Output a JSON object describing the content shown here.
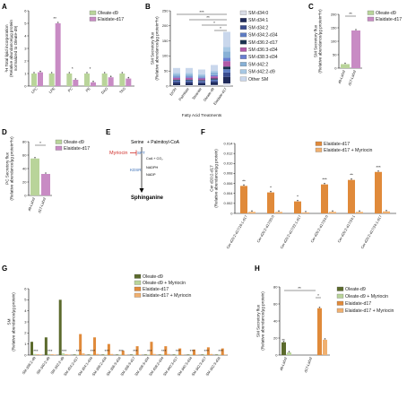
{
  "colors": {
    "oleate_d9": "#b9d49a",
    "elaidate_d17": "#c88bc4",
    "myriocin_green": "#7aa85a",
    "ela_orange": "#e08a3a",
    "ela_myr_orange": "#f0b070",
    "olive_dark": "#5b6a2c"
  },
  "panels": {
    "A": {
      "letter": "A",
      "ylabel": "³H Total lipid incorporation\n(Relative abundance/µg protein\nnormalized to Oleate-d9)",
      "legend": [
        "Oleate-d9",
        "Elaidate-d17"
      ]
    },
    "B": {
      "letter": "B",
      "ylabel": "SM Secretory flux\n(Relative abundance/µg protein*hr)",
      "xlabel": "Fatty Acid Treatments",
      "legend": [
        "SM d34:0",
        "SM d34:1",
        "SM d34:2",
        "SM d34:2-d34",
        "SM d36:2-d17",
        "SM d36:3-d34",
        "SM d38:3-d34",
        "SM d42:2",
        "SM d42:2-d9",
        "Other SM"
      ]
    },
    "C": {
      "letter": "C",
      "ylabel": "SM Secretory flux\n(Relative abundance/µg protein*hr)",
      "legend": [
        "Oleate-d9",
        "Elaidate-d17"
      ]
    },
    "D": {
      "letter": "D",
      "ylabel": "PC Secretory flux\n(Relative abundance/µg protein*hr)",
      "legend": [
        "Oleate-d9",
        "Elaidate-d17"
      ]
    },
    "E": {
      "letter": "E",
      "serine": "Serine",
      "palm": "+ Palmitoyl-CoA",
      "myriocin": "Myriocin",
      "spt": "SPT",
      "kdsr": "KDSR",
      "coa": "CoA + CO₂",
      "nadph": "NADPH",
      "nadp": "NADP",
      "product": "Sphinganine"
    },
    "F": {
      "letter": "F",
      "ylabel": "Cer d20:2-d17\n(Relative abundance/µg protein)",
      "legend": [
        "Elaidate-d17",
        "Elaidate-d17 + Myriocin"
      ]
    },
    "G": {
      "letter": "G",
      "ylabel": "SM\n(Relative abundance/µg protein)",
      "legend": [
        "Oleate-d9",
        "Oleate-d9 + Myriocin",
        "Elaidate-d17",
        "Elaidate-d17 + Myriocin"
      ]
    },
    "H": {
      "letter": "H",
      "ylabel": "SM Secretory flux\n(Relative abundance/µg protein)",
      "legend": [
        "Oleate-d9",
        "Oleate-d9 + Myriocin",
        "Elaidate-d17",
        "Elaidate-d17 + Myriocin"
      ]
    }
  },
  "chart_data": [
    {
      "panel": "A",
      "type": "bar",
      "categories": [
        "LPC",
        "LPE",
        "PC",
        "PE",
        "DAG",
        "TAG"
      ],
      "ylim": [
        0,
        6
      ],
      "yticks": [
        0,
        1,
        2,
        3,
        4,
        5,
        6
      ],
      "series": [
        {
          "name": "Oleate-d9",
          "values": [
            1.0,
            1.0,
            1.0,
            1.0,
            1.0,
            1.0
          ]
        },
        {
          "name": "Elaidate-d17",
          "values": [
            1.1,
            5.0,
            0.5,
            0.3,
            0.7,
            0.6
          ]
        }
      ],
      "significance": [
        "",
        "**",
        "*",
        "*",
        "",
        ""
      ]
    },
    {
      "panel": "B",
      "type": "bar",
      "categories": [
        "EtOH",
        "Palmitate",
        "Stearate",
        "Oleate-d9",
        "Elaidate-d17"
      ],
      "ylim": [
        0,
        250
      ],
      "yticks": [
        0,
        50,
        100,
        150,
        200,
        250
      ],
      "totals": [
        60,
        60,
        55,
        70,
        180
      ],
      "significance": [
        "***",
        "**",
        "*",
        "*"
      ]
    },
    {
      "panel": "C",
      "type": "bar",
      "categories": [
        "d9-Label",
        "d17-Label"
      ],
      "ylim": [
        0,
        200
      ],
      "yticks": [
        0,
        50,
        100,
        150,
        200
      ],
      "values": [
        15,
        140
      ],
      "significance": "**"
    },
    {
      "panel": "D",
      "type": "bar",
      "categories": [
        "d9-Label",
        "d17-Label"
      ],
      "ylim": [
        0,
        80
      ],
      "yticks": [
        0,
        20,
        40,
        60,
        80
      ],
      "values": [
        55,
        32
      ],
      "significance": "*"
    },
    {
      "panel": "F",
      "type": "bar",
      "categories": [
        "Cer d20:2-d17/16:1-d17",
        "Cer d20:2-d17/20:0",
        "Cer d20:2-d17/22:1-d17",
        "Cer d20:2-d17/24:0",
        "Cer d20:2-d17/24:1",
        "Cer d20:2-d17/24:1-d17"
      ],
      "ylim": [
        0,
        0.014
      ],
      "yticks": [
        0,
        0.002,
        0.004,
        0.006,
        0.008,
        0.01,
        0.012,
        0.014
      ],
      "series": [
        {
          "name": "Elaidate-d17",
          "values": [
            0.0055,
            0.0042,
            0.0024,
            0.0058,
            0.0067,
            0.0083
          ]
        },
        {
          "name": "Elaidate-d17 + Myriocin",
          "values": [
            0.0003,
            0.0003,
            0.0002,
            0.0003,
            0.0003,
            0.0004
          ]
        }
      ],
      "significance": [
        "**",
        "*",
        "*",
        "***",
        "**",
        "***"
      ]
    },
    {
      "panel": "G",
      "type": "bar",
      "categories": [
        "SM d36:2-d9",
        "SM d40:2-d9",
        "SM d42:2-d9",
        "SM d34:2-d17",
        "SM d34:1-d34",
        "SM d36:2-d34",
        "SM d36:3-d34",
        "SM d36:3-d17",
        "SM d38:3-d34",
        "SM d38:2-d34",
        "SM d40:3-d17",
        "SM d40:3-d34",
        "SM d42:3-d17",
        "SM d42:3-d34"
      ],
      "ylim": [
        0,
        6
      ],
      "yticks": [
        0,
        1,
        2,
        3,
        4,
        5,
        6
      ],
      "series": [
        {
          "name": "Oleate-d9",
          "values": [
            1.2,
            1.6,
            5.0,
            0.05,
            0.05,
            0.05,
            0.05,
            0.05,
            0.05,
            0.05,
            0.05,
            0.05,
            0.05,
            0.05
          ]
        },
        {
          "name": "Oleate-d9 + Myriocin",
          "values": [
            0.1,
            0.1,
            0.15,
            0.05,
            0.05,
            0.05,
            0.05,
            0.05,
            0.05,
            0.05,
            0.05,
            0.05,
            0.05,
            0.05
          ]
        },
        {
          "name": "Elaidate-d17",
          "values": [
            0.05,
            0.05,
            0.05,
            1.9,
            1.6,
            1.0,
            0.4,
            0.8,
            1.2,
            0.8,
            0.6,
            0.5,
            0.7,
            0.6
          ]
        },
        {
          "name": "Elaidate-d17 + Myriocin",
          "values": [
            0.05,
            0.05,
            0.05,
            0.15,
            0.1,
            0.1,
            0.05,
            0.05,
            0.1,
            0.1,
            0.05,
            0.05,
            0.1,
            0.05
          ]
        }
      ]
    },
    {
      "panel": "H",
      "type": "bar",
      "categories": [
        "d9-Label",
        "d17-Label"
      ],
      "ylim": [
        0,
        80
      ],
      "yticks": [
        0,
        20,
        40,
        60,
        80
      ],
      "series": [
        {
          "name": "Oleate-d9",
          "values": [
            15,
            0
          ]
        },
        {
          "name": "Oleate-d9 + Myriocin",
          "values": [
            3,
            0
          ]
        },
        {
          "name": "Elaidate-d17",
          "values": [
            0,
            55
          ]
        },
        {
          "name": "Elaidate-d17 + Myriocin",
          "values": [
            0,
            18
          ]
        }
      ],
      "significance": [
        "**",
        "**",
        "*"
      ]
    }
  ]
}
